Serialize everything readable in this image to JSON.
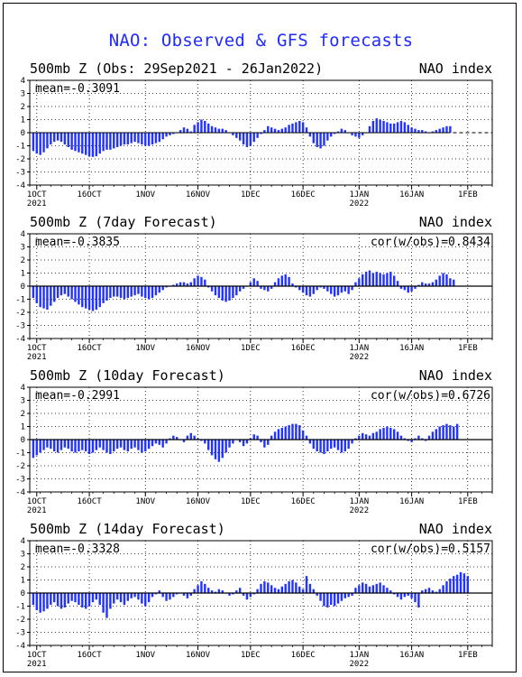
{
  "title": "NAO: Observed & GFS forecasts",
  "colors": {
    "bar": "#2233ff",
    "title": "#1f2bff",
    "axis": "#000000",
    "grid": "#000000"
  },
  "chart_data": [
    {
      "type": "bar",
      "title": "500mb Z (Obs: 29Sep2021 - 26Jan2022)",
      "right_title": "NAO index",
      "mean_label": "mean=-0.3091",
      "cor_label": "",
      "ylim": [
        -4,
        4
      ],
      "yticks": [
        -4,
        -3,
        -2,
        -1,
        0,
        1,
        2,
        3,
        4
      ],
      "x_range": [
        0,
        132
      ],
      "xticks": [
        {
          "x": 2,
          "label": "1OCT",
          "sub": "2021"
        },
        {
          "x": 17,
          "label": "16OCT",
          "sub": ""
        },
        {
          "x": 33,
          "label": "1NOV",
          "sub": ""
        },
        {
          "x": 48,
          "label": "16NOV",
          "sub": ""
        },
        {
          "x": 63,
          "label": "1DEC",
          "sub": ""
        },
        {
          "x": 78,
          "label": "16DEC",
          "sub": ""
        },
        {
          "x": 94,
          "label": "1JAN",
          "sub": "2022"
        },
        {
          "x": 109,
          "label": "16JAN",
          "sub": ""
        },
        {
          "x": 125,
          "label": "1FEB",
          "sub": ""
        }
      ],
      "minor_step": 3,
      "dashed_zero_from": 119,
      "start": 0,
      "values": [
        -1.4,
        -1.6,
        -1.7,
        -1.5,
        -1.2,
        -0.9,
        -0.7,
        -0.6,
        -0.7,
        -0.9,
        -1.1,
        -1.3,
        -1.4,
        -1.5,
        -1.6,
        -1.7,
        -1.8,
        -1.85,
        -1.8,
        -1.6,
        -1.4,
        -1.3,
        -1.3,
        -1.2,
        -1.1,
        -1.0,
        -0.9,
        -0.9,
        -0.8,
        -0.7,
        -0.8,
        -0.9,
        -1.0,
        -1.0,
        -0.9,
        -0.8,
        -0.7,
        -0.5,
        -0.3,
        -0.2,
        -0.1,
        0.0,
        0.2,
        0.4,
        0.3,
        0.1,
        0.6,
        0.8,
        1.0,
        0.9,
        0.7,
        0.5,
        0.4,
        0.3,
        0.3,
        0.2,
        0.0,
        -0.2,
        -0.4,
        -0.6,
        -0.9,
        -1.1,
        -1.0,
        -0.7,
        -0.4,
        -0.1,
        0.2,
        0.5,
        0.4,
        0.3,
        0.2,
        0.3,
        0.4,
        0.6,
        0.7,
        0.8,
        0.9,
        0.8,
        0.4,
        -0.3,
        -0.8,
        -1.1,
        -1.2,
        -1.0,
        -0.6,
        -0.3,
        -0.1,
        0.1,
        0.3,
        0.2,
        0.0,
        -0.2,
        -0.3,
        -0.4,
        -0.2,
        0.0,
        0.5,
        0.9,
        1.1,
        1.0,
        0.9,
        0.8,
        0.7,
        0.7,
        0.8,
        0.9,
        0.8,
        0.6,
        0.4,
        0.3,
        0.2,
        0.2,
        0.1,
        0.0,
        0.1,
        0.2,
        0.3,
        0.4,
        0.5,
        0.5
      ]
    },
    {
      "type": "bar",
      "title": "500mb Z (7day Forecast)",
      "right_title": "NAO index",
      "mean_label": "mean=-0.3835",
      "cor_label": "cor(w/obs)=0.8434",
      "ylim": [
        -4,
        4
      ],
      "yticks": [
        -4,
        -3,
        -2,
        -1,
        0,
        1,
        2,
        3,
        4
      ],
      "x_range": [
        0,
        132
      ],
      "xticks": [
        {
          "x": 2,
          "label": "1OCT",
          "sub": "2021"
        },
        {
          "x": 17,
          "label": "16OCT",
          "sub": ""
        },
        {
          "x": 33,
          "label": "1NOV",
          "sub": ""
        },
        {
          "x": 48,
          "label": "16NOV",
          "sub": ""
        },
        {
          "x": 63,
          "label": "1DEC",
          "sub": ""
        },
        {
          "x": 78,
          "label": "16DEC",
          "sub": ""
        },
        {
          "x": 94,
          "label": "1JAN",
          "sub": "2022"
        },
        {
          "x": 109,
          "label": "16JAN",
          "sub": ""
        },
        {
          "x": 125,
          "label": "1FEB",
          "sub": ""
        }
      ],
      "minor_step": 3,
      "dashed_zero_from": null,
      "start": 0,
      "values": [
        -0.9,
        -1.3,
        -1.6,
        -1.7,
        -1.8,
        -1.5,
        -1.2,
        -0.9,
        -0.7,
        -0.6,
        -0.8,
        -1.0,
        -1.2,
        -1.4,
        -1.6,
        -1.7,
        -1.8,
        -1.9,
        -1.8,
        -1.6,
        -1.3,
        -1.1,
        -0.9,
        -0.8,
        -0.8,
        -0.9,
        -1.0,
        -0.9,
        -0.8,
        -0.7,
        -0.6,
        -0.8,
        -0.9,
        -1.0,
        -0.9,
        -0.7,
        -0.5,
        -0.3,
        -0.1,
        0.0,
        0.1,
        0.2,
        0.3,
        0.3,
        0.2,
        0.3,
        0.6,
        0.8,
        0.7,
        0.5,
        -0.1,
        -0.4,
        -0.7,
        -0.9,
        -1.1,
        -1.2,
        -1.1,
        -0.9,
        -0.7,
        -0.4,
        -0.2,
        0.0,
        0.3,
        0.6,
        0.4,
        -0.2,
        -0.3,
        -0.4,
        -0.2,
        0.3,
        0.6,
        0.8,
        0.9,
        0.7,
        0.2,
        -0.1,
        -0.3,
        -0.5,
        -0.7,
        -0.8,
        -0.6,
        -0.3,
        -0.1,
        -0.2,
        -0.4,
        -0.6,
        -0.8,
        -0.7,
        -0.5,
        -0.4,
        -0.6,
        -0.3,
        0.3,
        0.6,
        0.9,
        1.1,
        1.2,
        1.0,
        1.1,
        1.0,
        0.9,
        1.0,
        1.1,
        0.8,
        0.4,
        -0.2,
        -0.3,
        -0.5,
        -0.4,
        -0.2,
        0.1,
        0.3,
        0.2,
        0.2,
        0.3,
        0.5,
        0.8,
        1.0,
        0.9,
        0.6,
        0.5
      ]
    },
    {
      "type": "bar",
      "title": "500mb Z (10day Forecast)",
      "right_title": "NAO index",
      "mean_label": "mean=-0.2991",
      "cor_label": "cor(w/obs)=0.6726",
      "ylim": [
        -4,
        4
      ],
      "yticks": [
        -4,
        -3,
        -2,
        -1,
        0,
        1,
        2,
        3,
        4
      ],
      "x_range": [
        0,
        132
      ],
      "xticks": [
        {
          "x": 2,
          "label": "1OCT",
          "sub": "2021"
        },
        {
          "x": 17,
          "label": "16OCT",
          "sub": ""
        },
        {
          "x": 33,
          "label": "1NOV",
          "sub": ""
        },
        {
          "x": 48,
          "label": "16NOV",
          "sub": ""
        },
        {
          "x": 63,
          "label": "1DEC",
          "sub": ""
        },
        {
          "x": 78,
          "label": "16DEC",
          "sub": ""
        },
        {
          "x": 94,
          "label": "1JAN",
          "sub": "2022"
        },
        {
          "x": 109,
          "label": "16JAN",
          "sub": ""
        },
        {
          "x": 125,
          "label": "1FEB",
          "sub": ""
        }
      ],
      "minor_step": 3,
      "dashed_zero_from": null,
      "start": 0,
      "values": [
        -1.4,
        -1.2,
        -1.0,
        -0.8,
        -0.6,
        -0.7,
        -0.9,
        -1.0,
        -0.8,
        -0.6,
        -0.7,
        -0.9,
        -1.0,
        -0.9,
        -0.8,
        -0.9,
        -1.1,
        -1.0,
        -0.8,
        -0.6,
        -0.8,
        -1.0,
        -1.1,
        -0.9,
        -0.7,
        -0.6,
        -0.8,
        -0.9,
        -0.7,
        -0.6,
        -0.8,
        -1.0,
        -0.9,
        -0.7,
        -0.5,
        -0.3,
        -0.4,
        -0.6,
        -0.3,
        0.1,
        0.3,
        0.2,
        0.0,
        -0.2,
        0.3,
        0.5,
        0.3,
        0.1,
        -0.1,
        -0.3,
        -0.8,
        -1.2,
        -1.5,
        -1.7,
        -1.4,
        -1.0,
        -0.6,
        -0.3,
        0.0,
        -0.2,
        -0.5,
        -0.3,
        0.1,
        0.4,
        0.3,
        -0.2,
        -0.6,
        -0.4,
        0.3,
        0.6,
        0.8,
        0.9,
        1.0,
        1.1,
        1.2,
        1.2,
        1.1,
        0.7,
        0.3,
        -0.3,
        -0.7,
        -0.9,
        -1.0,
        -1.1,
        -0.9,
        -0.7,
        -0.6,
        -0.8,
        -1.0,
        -0.9,
        -0.7,
        -0.3,
        0.1,
        0.3,
        0.5,
        0.4,
        0.3,
        0.5,
        0.6,
        0.8,
        0.9,
        1.0,
        0.9,
        0.8,
        0.6,
        0.3,
        0.1,
        -0.1,
        -0.2,
        0.1,
        0.3,
        0.1,
        -0.1,
        0.3,
        0.6,
        0.8,
        1.0,
        1.1,
        1.2,
        1.1,
        1.0,
        1.2
      ]
    },
    {
      "type": "bar",
      "title": "500mb Z (14day Forecast)",
      "right_title": "NAO index",
      "mean_label": "mean=-0.3328",
      "cor_label": "cor(w/obs)=0.5157",
      "ylim": [
        -4,
        4
      ],
      "yticks": [
        -4,
        -3,
        -2,
        -1,
        0,
        1,
        2,
        3,
        4
      ],
      "x_range": [
        0,
        132
      ],
      "xticks": [
        {
          "x": 2,
          "label": "1OCT",
          "sub": "2021"
        },
        {
          "x": 17,
          "label": "16OCT",
          "sub": ""
        },
        {
          "x": 33,
          "label": "1NOV",
          "sub": ""
        },
        {
          "x": 48,
          "label": "16NOV",
          "sub": ""
        },
        {
          "x": 63,
          "label": "1DEC",
          "sub": ""
        },
        {
          "x": 78,
          "label": "16DEC",
          "sub": ""
        },
        {
          "x": 94,
          "label": "1JAN",
          "sub": "2022"
        },
        {
          "x": 109,
          "label": "16JAN",
          "sub": ""
        },
        {
          "x": 125,
          "label": "1FEB",
          "sub": ""
        }
      ],
      "minor_step": 3,
      "dashed_zero_from": null,
      "start": 0,
      "values": [
        -0.9,
        -1.3,
        -1.5,
        -1.4,
        -1.2,
        -0.9,
        -0.7,
        -1.0,
        -1.2,
        -1.1,
        -0.8,
        -0.6,
        -0.7,
        -0.9,
        -1.1,
        -1.2,
        -1.0,
        -0.7,
        -0.5,
        -0.9,
        -1.5,
        -1.9,
        -1.2,
        -0.8,
        -0.5,
        -0.7,
        -0.9,
        -0.6,
        -0.4,
        -0.3,
        -0.5,
        -0.8,
        -1.0,
        -0.7,
        -0.3,
        -0.1,
        0.2,
        -0.3,
        -0.6,
        -0.5,
        -0.3,
        -0.1,
        0.0,
        -0.2,
        -0.4,
        -0.2,
        0.3,
        0.6,
        0.9,
        0.7,
        0.4,
        0.2,
        0.1,
        0.3,
        0.2,
        0.0,
        -0.2,
        -0.1,
        0.2,
        0.4,
        -0.2,
        -0.5,
        -0.3,
        -0.1,
        0.3,
        0.7,
        0.9,
        0.8,
        0.6,
        0.4,
        0.3,
        0.5,
        0.7,
        0.9,
        1.0,
        0.8,
        0.5,
        0.3,
        1.3,
        0.7,
        0.3,
        -0.2,
        -0.6,
        -1.0,
        -1.1,
        -0.9,
        -1.0,
        -0.8,
        -0.6,
        -0.4,
        -0.3,
        -0.2,
        0.4,
        0.6,
        0.8,
        0.7,
        0.5,
        0.6,
        0.7,
        0.8,
        0.6,
        0.4,
        0.2,
        -0.1,
        -0.3,
        -0.5,
        -0.3,
        -0.2,
        -0.4,
        -0.7,
        -1.1,
        0.2,
        0.3,
        0.4,
        0.2,
        0.1,
        0.3,
        0.6,
        0.9,
        1.1,
        1.3,
        1.4,
        1.6,
        1.5,
        1.3
      ]
    }
  ]
}
